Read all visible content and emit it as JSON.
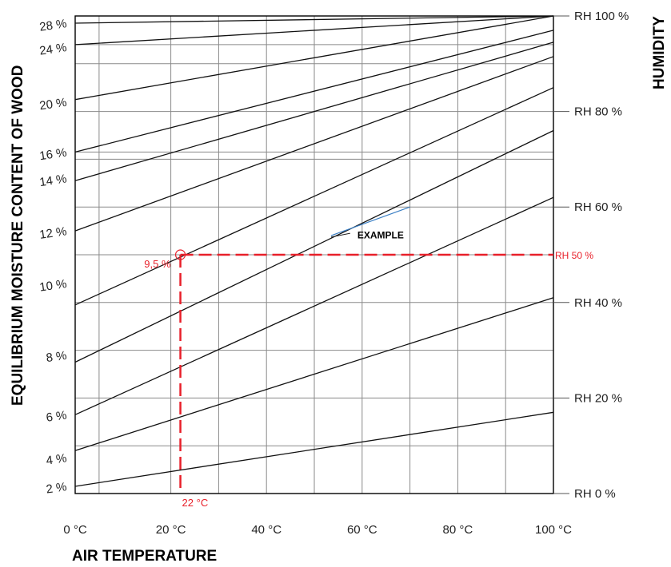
{
  "chart_data": {
    "type": "line",
    "xlabel": "AIR TEMPERATURE",
    "ylabel": "EQUILIBRIUM MOISTURE CONTENT OF WOOD",
    "right_label": "HUMIDITY",
    "xlim": [
      0,
      100
    ],
    "ylim": [
      0,
      100
    ],
    "grid": true,
    "x_ticks": [
      {
        "value": 0,
        "label": "0 °C"
      },
      {
        "value": 20,
        "label": "20 °C"
      },
      {
        "value": 40,
        "label": "40 °C"
      },
      {
        "value": 60,
        "label": "60 °C"
      },
      {
        "value": 80,
        "label": "80 °C"
      },
      {
        "value": 100,
        "label": "100 °C"
      }
    ],
    "y_ticks": [
      {
        "value": 2,
        "label": "2 %",
        "y": 1.5
      },
      {
        "value": 4,
        "label": "4 %",
        "y": 7.5
      },
      {
        "value": 6,
        "label": "6 %",
        "y": 16.5
      },
      {
        "value": 8,
        "label": "8 %",
        "y": 29
      },
      {
        "value": 10,
        "label": "10 %",
        "y": 44
      },
      {
        "value": 12,
        "label": "12 %",
        "y": 55
      },
      {
        "value": 14,
        "label": "14 %",
        "y": 66
      },
      {
        "value": 16,
        "label": "16 %",
        "y": 71.5
      },
      {
        "value": 20,
        "label": "20 %",
        "y": 82
      },
      {
        "value": 24,
        "label": "24 %",
        "y": 93.5
      },
      {
        "value": 28,
        "label": "28 %",
        "y": 98.5
      }
    ],
    "rh_ticks": [
      {
        "value": 0,
        "label": "RH 0 %"
      },
      {
        "value": 20,
        "label": "RH 20 %"
      },
      {
        "value": 40,
        "label": "RH 40 %"
      },
      {
        "value": 60,
        "label": "RH 60 %"
      },
      {
        "value": 80,
        "label": "RH 80 %"
      },
      {
        "value": 100,
        "label": "RH 100 %"
      }
    ],
    "x_gridlines": [
      0,
      5,
      20,
      30,
      40,
      50,
      60,
      70,
      80,
      90,
      100
    ],
    "y_gridlines": [
      0,
      10,
      20,
      30,
      40,
      50,
      60,
      70,
      71.5,
      80,
      90,
      94,
      100
    ],
    "series": [
      {
        "x": [
          0,
          100
        ],
        "y": [
          1.5,
          17
        ]
      },
      {
        "x": [
          0,
          100
        ],
        "y": [
          9,
          41
        ]
      },
      {
        "x": [
          0,
          100
        ],
        "y": [
          16.5,
          62
        ]
      },
      {
        "x": [
          0,
          100
        ],
        "y": [
          27.5,
          76
        ]
      },
      {
        "x": [
          0,
          100
        ],
        "y": [
          39.5,
          85
        ]
      },
      {
        "x": [
          0,
          100
        ],
        "y": [
          55,
          91.5
        ]
      },
      {
        "x": [
          0,
          100
        ],
        "y": [
          65.5,
          94.5
        ]
      },
      {
        "x": [
          0,
          100
        ],
        "y": [
          71.5,
          97
        ]
      },
      {
        "x": [
          0,
          100
        ],
        "y": [
          82.5,
          100
        ]
      },
      {
        "x": [
          0,
          100
        ],
        "y": [
          94,
          100
        ]
      },
      {
        "x": [
          0,
          100
        ],
        "y": [
          98.5,
          100
        ]
      }
    ],
    "example": {
      "label": "EXAMPLE",
      "temperature": 22,
      "temperature_label": "22 °C",
      "moisture_label": "9,5 %",
      "rh_label": "RH 50 %",
      "rh_value": 50,
      "color": "#e8202a",
      "pointer_color": "#3b7fc4"
    }
  }
}
